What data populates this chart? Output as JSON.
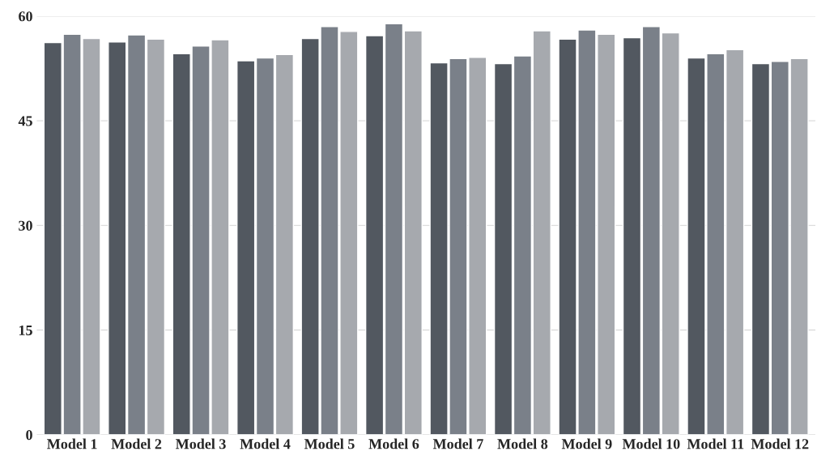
{
  "chart_data": {
    "type": "bar",
    "categories": [
      "Model 1",
      "Model 2",
      "Model 3",
      "Model 4",
      "Model 5",
      "Model 6",
      "Model 7",
      "Model 8",
      "Model 9",
      "Model 10",
      "Model 11",
      "Model 12"
    ],
    "series": [
      {
        "color": "#525860",
        "values": [
          56.2,
          56.3,
          54.6,
          53.6,
          56.8,
          57.2,
          53.3,
          53.2,
          56.7,
          56.9,
          54.0,
          53.2
        ]
      },
      {
        "color": "#7a8089",
        "values": [
          57.4,
          57.3,
          55.7,
          54.0,
          58.5,
          58.9,
          53.9,
          54.3,
          58.0,
          58.5,
          54.6,
          53.5
        ]
      },
      {
        "color": "#a6a9ae",
        "values": [
          56.8,
          56.7,
          56.6,
          54.5,
          57.8,
          57.9,
          54.1,
          57.9,
          57.4,
          57.6,
          55.2,
          53.9
        ]
      }
    ],
    "ylim": [
      0,
      60
    ],
    "yticks": [
      0,
      15,
      30,
      45,
      60
    ],
    "grid": "y"
  }
}
